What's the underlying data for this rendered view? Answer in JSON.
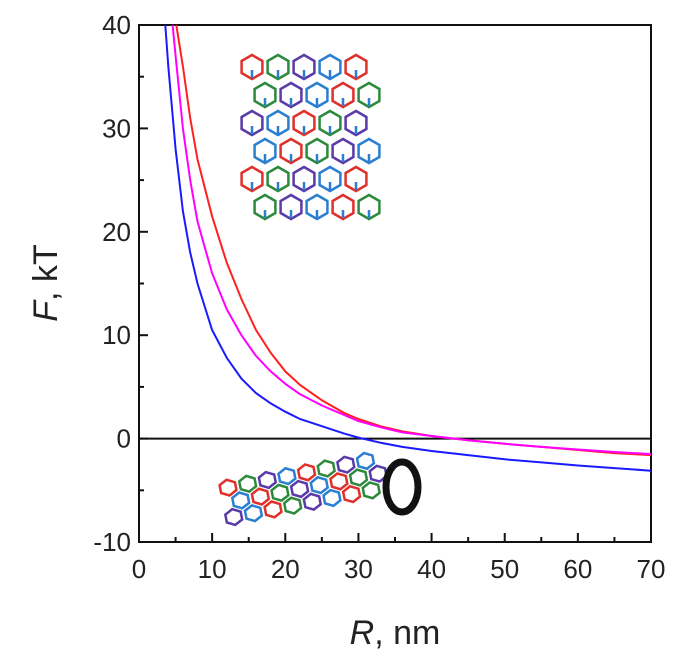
{
  "chart_data": {
    "type": "line",
    "xlabel_italic": "R",
    "xlabel_rest": ", nm",
    "ylabel_italic": "F",
    "ylabel_rest": ", kT",
    "xlim": [
      0,
      70
    ],
    "ylim": [
      -10,
      40
    ],
    "x_ticks": [
      0,
      10,
      20,
      30,
      40,
      50,
      60,
      70
    ],
    "x_tick_labels": [
      "0",
      "10",
      "20",
      "30",
      "40",
      "50",
      "60",
      "70"
    ],
    "y_ticks": [
      -10,
      0,
      10,
      20,
      30,
      40
    ],
    "y_tick_labels": [
      "-10",
      "0",
      "10",
      "20",
      "30",
      "40"
    ],
    "zero_line": true,
    "grid": false,
    "series": [
      {
        "color": "#ff2020",
        "points": [
          [
            5.1,
            40
          ],
          [
            6,
            36
          ],
          [
            7,
            31
          ],
          [
            8,
            27
          ],
          [
            10,
            21.5
          ],
          [
            12,
            17
          ],
          [
            14,
            13.5
          ],
          [
            16,
            10.5
          ],
          [
            18,
            8.3
          ],
          [
            20,
            6.5
          ],
          [
            22,
            5.2
          ],
          [
            25,
            3.7
          ],
          [
            28,
            2.5
          ],
          [
            30,
            1.9
          ],
          [
            33,
            1.2
          ],
          [
            36,
            0.7
          ],
          [
            40,
            0.25
          ],
          [
            45,
            -0.15
          ],
          [
            50,
            -0.5
          ],
          [
            55,
            -0.8
          ],
          [
            60,
            -1.1
          ],
          [
            65,
            -1.4
          ],
          [
            70,
            -1.6
          ]
        ]
      },
      {
        "color": "#ff00ff",
        "points": [
          [
            4.6,
            40
          ],
          [
            5,
            37
          ],
          [
            6,
            30
          ],
          [
            7,
            25
          ],
          [
            8,
            21
          ],
          [
            10,
            16
          ],
          [
            12,
            12.5
          ],
          [
            14,
            10
          ],
          [
            16,
            8
          ],
          [
            18,
            6.5
          ],
          [
            20,
            5.3
          ],
          [
            22,
            4.3
          ],
          [
            25,
            3.2
          ],
          [
            28,
            2.3
          ],
          [
            30,
            1.7
          ],
          [
            33,
            1.1
          ],
          [
            36,
            0.6
          ],
          [
            40,
            0.25
          ],
          [
            45,
            -0.15
          ],
          [
            50,
            -0.5
          ],
          [
            55,
            -0.8
          ],
          [
            60,
            -1.05
          ],
          [
            65,
            -1.3
          ],
          [
            70,
            -1.5
          ]
        ]
      },
      {
        "color": "#1a1aff",
        "points": [
          [
            3.6,
            40
          ],
          [
            4,
            36
          ],
          [
            5,
            28
          ],
          [
            6,
            22
          ],
          [
            7,
            18
          ],
          [
            8,
            15
          ],
          [
            10,
            10.5
          ],
          [
            12,
            7.8
          ],
          [
            14,
            5.8
          ],
          [
            16,
            4.4
          ],
          [
            18,
            3.4
          ],
          [
            20,
            2.6
          ],
          [
            22,
            1.9
          ],
          [
            25,
            1.2
          ],
          [
            28,
            0.5
          ],
          [
            30,
            0.1
          ],
          [
            33,
            -0.4
          ],
          [
            36,
            -0.8
          ],
          [
            40,
            -1.2
          ],
          [
            45,
            -1.6
          ],
          [
            50,
            -2
          ],
          [
            55,
            -2.3
          ],
          [
            60,
            -2.6
          ],
          [
            65,
            -2.85
          ],
          [
            70,
            -3.1
          ]
        ]
      }
    ],
    "annotations": [
      "graphene-sheet-drawing",
      "nanotube-drawing"
    ]
  }
}
